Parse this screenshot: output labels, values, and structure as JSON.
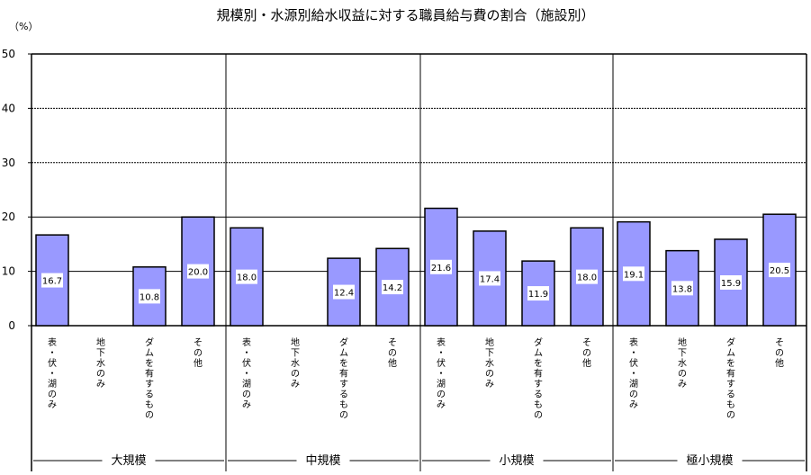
{
  "title": "規模別・水源別給水収益に対する職員給与費の割合（施設別）",
  "unit": "（%）",
  "chart_data": {
    "type": "bar",
    "title": "規模別・水源別給水収益に対する職員給与費の割合（施設別）",
    "ylabel": "（%）",
    "ylim": [
      0,
      50
    ],
    "yticks": [
      "0",
      "10",
      "20",
      "30",
      "40",
      "50"
    ],
    "grid": true,
    "bar_color": "#9999ff",
    "groups": [
      {
        "name": "大規模",
        "categories": [
          "表・伏・湖のみ",
          "地下水のみ",
          "ダムを有するもの",
          "その他"
        ],
        "values": [
          16.7,
          null,
          10.8,
          20.0
        ],
        "labels": [
          "16.7",
          "",
          "10.8",
          "20.0"
        ]
      },
      {
        "name": "中規模",
        "categories": [
          "表・伏・湖のみ",
          "地下水のみ",
          "ダムを有するもの",
          "その他"
        ],
        "values": [
          18.0,
          null,
          12.4,
          14.2
        ],
        "labels": [
          "18.0",
          "",
          "12.4",
          "14.2"
        ]
      },
      {
        "name": "小規模",
        "categories": [
          "表・伏・湖のみ",
          "地下水のみ",
          "ダムを有するもの",
          "その他"
        ],
        "values": [
          21.6,
          17.4,
          11.9,
          18.0
        ],
        "labels": [
          "21.6",
          "17.4",
          "11.9",
          "18.0"
        ]
      },
      {
        "name": "極小規模",
        "categories": [
          "表・伏・湖のみ",
          "地下水のみ",
          "ダムを有するもの",
          "その他"
        ],
        "values": [
          19.1,
          13.8,
          15.9,
          20.5
        ],
        "labels": [
          "19.1",
          "13.8",
          "15.9",
          "20.5"
        ]
      }
    ]
  }
}
